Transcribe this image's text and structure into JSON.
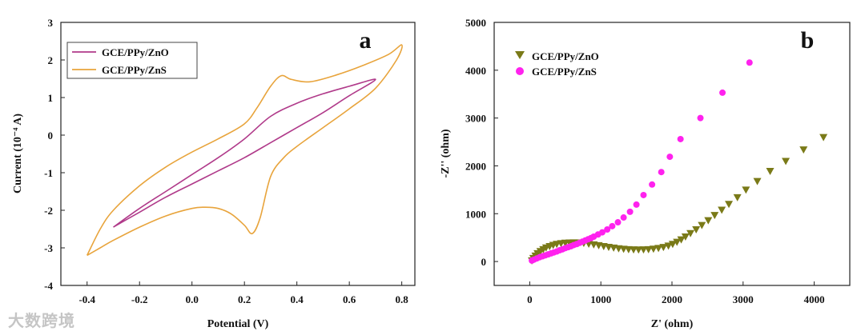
{
  "watermark": "大数跨境",
  "colors": {
    "zno": "#b03a8a",
    "zns": "#e8a43c",
    "eis_zno": "#7a7a18",
    "eis_zns": "#ff22ee"
  },
  "chart_data": [
    {
      "type": "line",
      "panel": "a",
      "xlabel": "Potential (V)",
      "ylabel": "Current (10⁻⁴ A)",
      "xlim": [
        -0.5,
        0.85
      ],
      "ylim": [
        -4,
        3
      ],
      "xticks": [
        -0.4,
        -0.2,
        0.0,
        0.2,
        0.4,
        0.6,
        0.8
      ],
      "yticks": [
        -4,
        -3,
        -2,
        -1,
        0,
        1,
        2,
        3
      ],
      "legend_position": "top-left",
      "series": [
        {
          "name": "GCE/PPy/ZnO",
          "x": [
            -0.3,
            -0.2,
            -0.1,
            0.0,
            0.1,
            0.2,
            0.3,
            0.4,
            0.5,
            0.6,
            0.7,
            0.6,
            0.5,
            0.4,
            0.3,
            0.2,
            0.1,
            0.0,
            -0.1,
            -0.2,
            -0.3
          ],
          "y": [
            -2.45,
            -1.95,
            -1.5,
            -1.05,
            -0.6,
            -0.1,
            0.5,
            0.85,
            1.1,
            1.3,
            1.48,
            1.05,
            0.6,
            0.2,
            -0.2,
            -0.6,
            -0.95,
            -1.3,
            -1.65,
            -2.05,
            -2.45
          ]
        },
        {
          "name": "GCE/PPy/ZnS",
          "x": [
            -0.4,
            -0.35,
            -0.3,
            -0.2,
            -0.1,
            0.0,
            0.1,
            0.2,
            0.25,
            0.3,
            0.34,
            0.38,
            0.45,
            0.55,
            0.65,
            0.75,
            0.8,
            0.78,
            0.7,
            0.6,
            0.5,
            0.4,
            0.35,
            0.3,
            0.26,
            0.23,
            0.2,
            0.15,
            0.1,
            0.05,
            0.0,
            -0.1,
            -0.2,
            -0.3,
            -0.35,
            -0.4
          ],
          "y": [
            -3.2,
            -2.5,
            -2.0,
            -1.35,
            -0.85,
            -0.45,
            -0.1,
            0.3,
            0.75,
            1.3,
            1.58,
            1.48,
            1.42,
            1.6,
            1.85,
            2.15,
            2.4,
            2.0,
            1.25,
            0.7,
            0.2,
            -0.3,
            -0.6,
            -1.1,
            -2.2,
            -2.62,
            -2.4,
            -2.1,
            -1.95,
            -1.92,
            -1.95,
            -2.15,
            -2.45,
            -2.8,
            -3.0,
            -3.2
          ]
        }
      ]
    },
    {
      "type": "scatter",
      "panel": "b",
      "xlabel": "Z' (ohm)",
      "ylabel": "-Z'' (ohm)",
      "xlim": [
        -500,
        4500
      ],
      "ylim": [
        -500,
        5000
      ],
      "xticks": [
        0,
        1000,
        2000,
        3000,
        4000
      ],
      "yticks": [
        0,
        1000,
        2000,
        3000,
        4000,
        5000
      ],
      "legend_position": "top-left",
      "series": [
        {
          "name": "GCE/PPy/ZnO",
          "marker": "triangle-down",
          "x": [
            30,
            50,
            80,
            110,
            150,
            190,
            230,
            280,
            330,
            380,
            440,
            500,
            560,
            620,
            690,
            760,
            830,
            900,
            970,
            1040,
            1110,
            1180,
            1250,
            1320,
            1390,
            1460,
            1530,
            1600,
            1670,
            1740,
            1810,
            1880,
            1950,
            2010,
            2070,
            2130,
            2190,
            2260,
            2340,
            2420,
            2510,
            2600,
            2700,
            2800,
            2920,
            3040,
            3200,
            3380,
            3600,
            3850,
            4130
          ],
          "y": [
            20,
            70,
            120,
            170,
            215,
            255,
            290,
            320,
            345,
            365,
            380,
            390,
            395,
            397,
            395,
            385,
            370,
            355,
            338,
            320,
            302,
            287,
            273,
            263,
            255,
            250,
            248,
            250,
            255,
            265,
            280,
            300,
            330,
            365,
            410,
            460,
            520,
            590,
            670,
            760,
            860,
            970,
            1080,
            1200,
            1340,
            1500,
            1680,
            1890,
            2100,
            2340,
            2600
          ]
        },
        {
          "name": "GCE/PPy/ZnS",
          "marker": "circle",
          "x": [
            30,
            60,
            100,
            140,
            180,
            220,
            260,
            300,
            340,
            380,
            420,
            460,
            500,
            540,
            580,
            620,
            660,
            700,
            740,
            780,
            820,
            860,
            900,
            960,
            1020,
            1090,
            1160,
            1240,
            1320,
            1410,
            1500,
            1600,
            1720,
            1850,
            1970,
            2120,
            2400,
            2710,
            3090
          ],
          "y": [
            20,
            40,
            65,
            90,
            110,
            130,
            150,
            170,
            190,
            210,
            235,
            255,
            280,
            300,
            320,
            345,
            365,
            390,
            415,
            440,
            465,
            490,
            520,
            565,
            610,
            670,
            740,
            820,
            920,
            1040,
            1190,
            1390,
            1610,
            1870,
            2190,
            2560,
            3000,
            3530,
            4160
          ]
        }
      ]
    }
  ],
  "panel_a": {
    "letter": "a",
    "xlabel": "Potential (V)",
    "ylabel": "Current (10⁻⁴ A)",
    "xtick_labels": [
      "-0.4",
      "-0.2",
      "0.0",
      "0.2",
      "0.4",
      "0.6",
      "0.8"
    ],
    "ytick_labels": [
      "-4",
      "-3",
      "-2",
      "-1",
      "0",
      "1",
      "2",
      "3"
    ],
    "legend": [
      "GCE/PPy/ZnO",
      "GCE/PPy/ZnS"
    ]
  },
  "panel_b": {
    "letter": "b",
    "xlabel": "Z' (ohm)",
    "ylabel": "-Z'' (ohm)",
    "xtick_labels": [
      "0",
      "1000",
      "2000",
      "3000",
      "4000"
    ],
    "ytick_labels": [
      "0",
      "1000",
      "2000",
      "3000",
      "4000",
      "5000"
    ],
    "legend": [
      "GCE/PPy/ZnO",
      "GCE/PPy/ZnS"
    ]
  }
}
